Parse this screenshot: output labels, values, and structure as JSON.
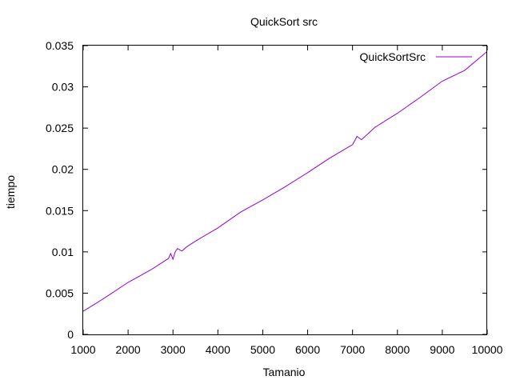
{
  "chart_data": {
    "type": "line",
    "title": "QuickSort src",
    "xlabel": "Tamanio",
    "ylabel": "tiempo",
    "xlim": [
      1000,
      10000
    ],
    "ylim": [
      0,
      0.035
    ],
    "x_ticks": [
      1000,
      2000,
      3000,
      4000,
      5000,
      6000,
      7000,
      8000,
      9000,
      10000
    ],
    "y_ticks": [
      0,
      0.005,
      0.01,
      0.015,
      0.02,
      0.025,
      0.03,
      0.035
    ],
    "x_tick_labels": [
      "1000",
      "2000",
      "3000",
      "4000",
      "5000",
      "6000",
      "7000",
      "8000",
      "9000",
      "10000"
    ],
    "y_tick_labels": [
      "0",
      "0.005",
      "0.01",
      "0.015",
      "0.02",
      "0.025",
      "0.03",
      "0.035"
    ],
    "grid": false,
    "legend_position": "top-right",
    "series": [
      {
        "name": "QuickSortSrc",
        "color": "#9400d3",
        "x": [
          1000,
          1500,
          2000,
          2500,
          2900,
          2950,
          3000,
          3050,
          3100,
          3200,
          3300,
          3500,
          4000,
          4500,
          5000,
          5500,
          6000,
          6500,
          7000,
          7100,
          7200,
          7500,
          8000,
          8500,
          9000,
          9500,
          10000
        ],
        "y": [
          0.0028,
          0.0045,
          0.0063,
          0.0078,
          0.0092,
          0.0098,
          0.0091,
          0.01,
          0.0104,
          0.0101,
          0.0106,
          0.0113,
          0.0129,
          0.0148,
          0.0163,
          0.0179,
          0.0196,
          0.0214,
          0.023,
          0.024,
          0.0236,
          0.0251,
          0.0268,
          0.0287,
          0.0307,
          0.032,
          0.0343
        ]
      }
    ]
  }
}
